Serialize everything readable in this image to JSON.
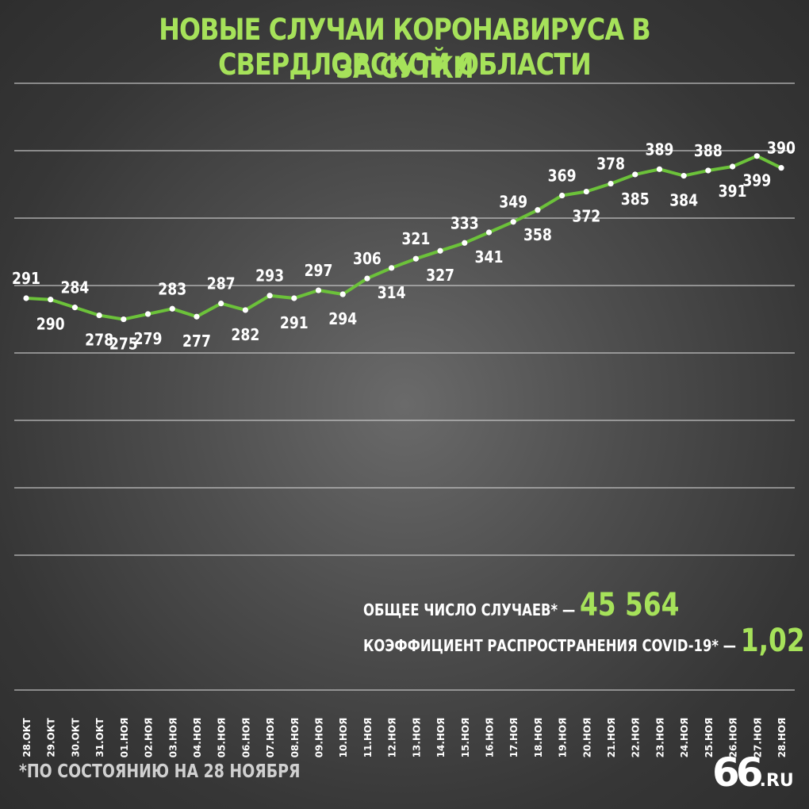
{
  "title": {
    "line1": "НОВЫЕ СЛУЧАИ КОРОНАВИРУСА В СВЕРДЛОВСКОЙ ОБЛАСТИ",
    "line2": "ЗА СУТКИ"
  },
  "stats": {
    "total_label": "ОБЩЕЕ ЧИСЛО СЛУЧАЕВ* —",
    "total_value": "45 564",
    "ratio_label": "КОЭФФИЦИЕНТ РАСПРОСТРАНЕНИЯ COVID-19* —",
    "ratio_value": "1,02"
  },
  "footnote": "*ПО СОСТОЯНИЮ НА 28 НОЯБРЯ",
  "logo": {
    "number": "66",
    "suffix": ".RU"
  },
  "colors": {
    "accent": "#a6e25a",
    "line": "#6cc23a",
    "grid": "#d8d8d8",
    "text": "#ffffff"
  },
  "chart_data": {
    "type": "line",
    "title": "НОВЫЕ СЛУЧАИ КОРОНАВИРУСА В СВЕРДЛОВСКОЙ ОБЛАСТИ ЗА СУТКИ",
    "xlabel": "",
    "ylabel": "",
    "grid": true,
    "categories": [
      "28.ОКТ",
      "29.ОКТ",
      "30.ОКТ",
      "31.ОКТ",
      "01.НОЯ",
      "02.НОЯ",
      "03.НОЯ",
      "04.НОЯ",
      "05.НОЯ",
      "06.НОЯ",
      "07.НОЯ",
      "08.НОЯ",
      "09.НОЯ",
      "10.НОЯ",
      "11.НОЯ",
      "12.НОЯ",
      "13.НОЯ",
      "14.НОЯ",
      "15.НОЯ",
      "16.НОЯ",
      "17.НОЯ",
      "18.НОЯ",
      "19.НОЯ",
      "20.НОЯ",
      "21.НОЯ",
      "22.НОЯ",
      "23.НОЯ",
      "24.НОЯ",
      "25.НОЯ",
      "26.НОЯ",
      "27.НОЯ",
      "28.НОЯ"
    ],
    "values": [
      291,
      290,
      284,
      278,
      275,
      279,
      283,
      277,
      287,
      282,
      293,
      291,
      297,
      294,
      306,
      314,
      321,
      327,
      333,
      341,
      349,
      358,
      369,
      372,
      378,
      385,
      389,
      384,
      388,
      391,
      399,
      390
    ]
  }
}
